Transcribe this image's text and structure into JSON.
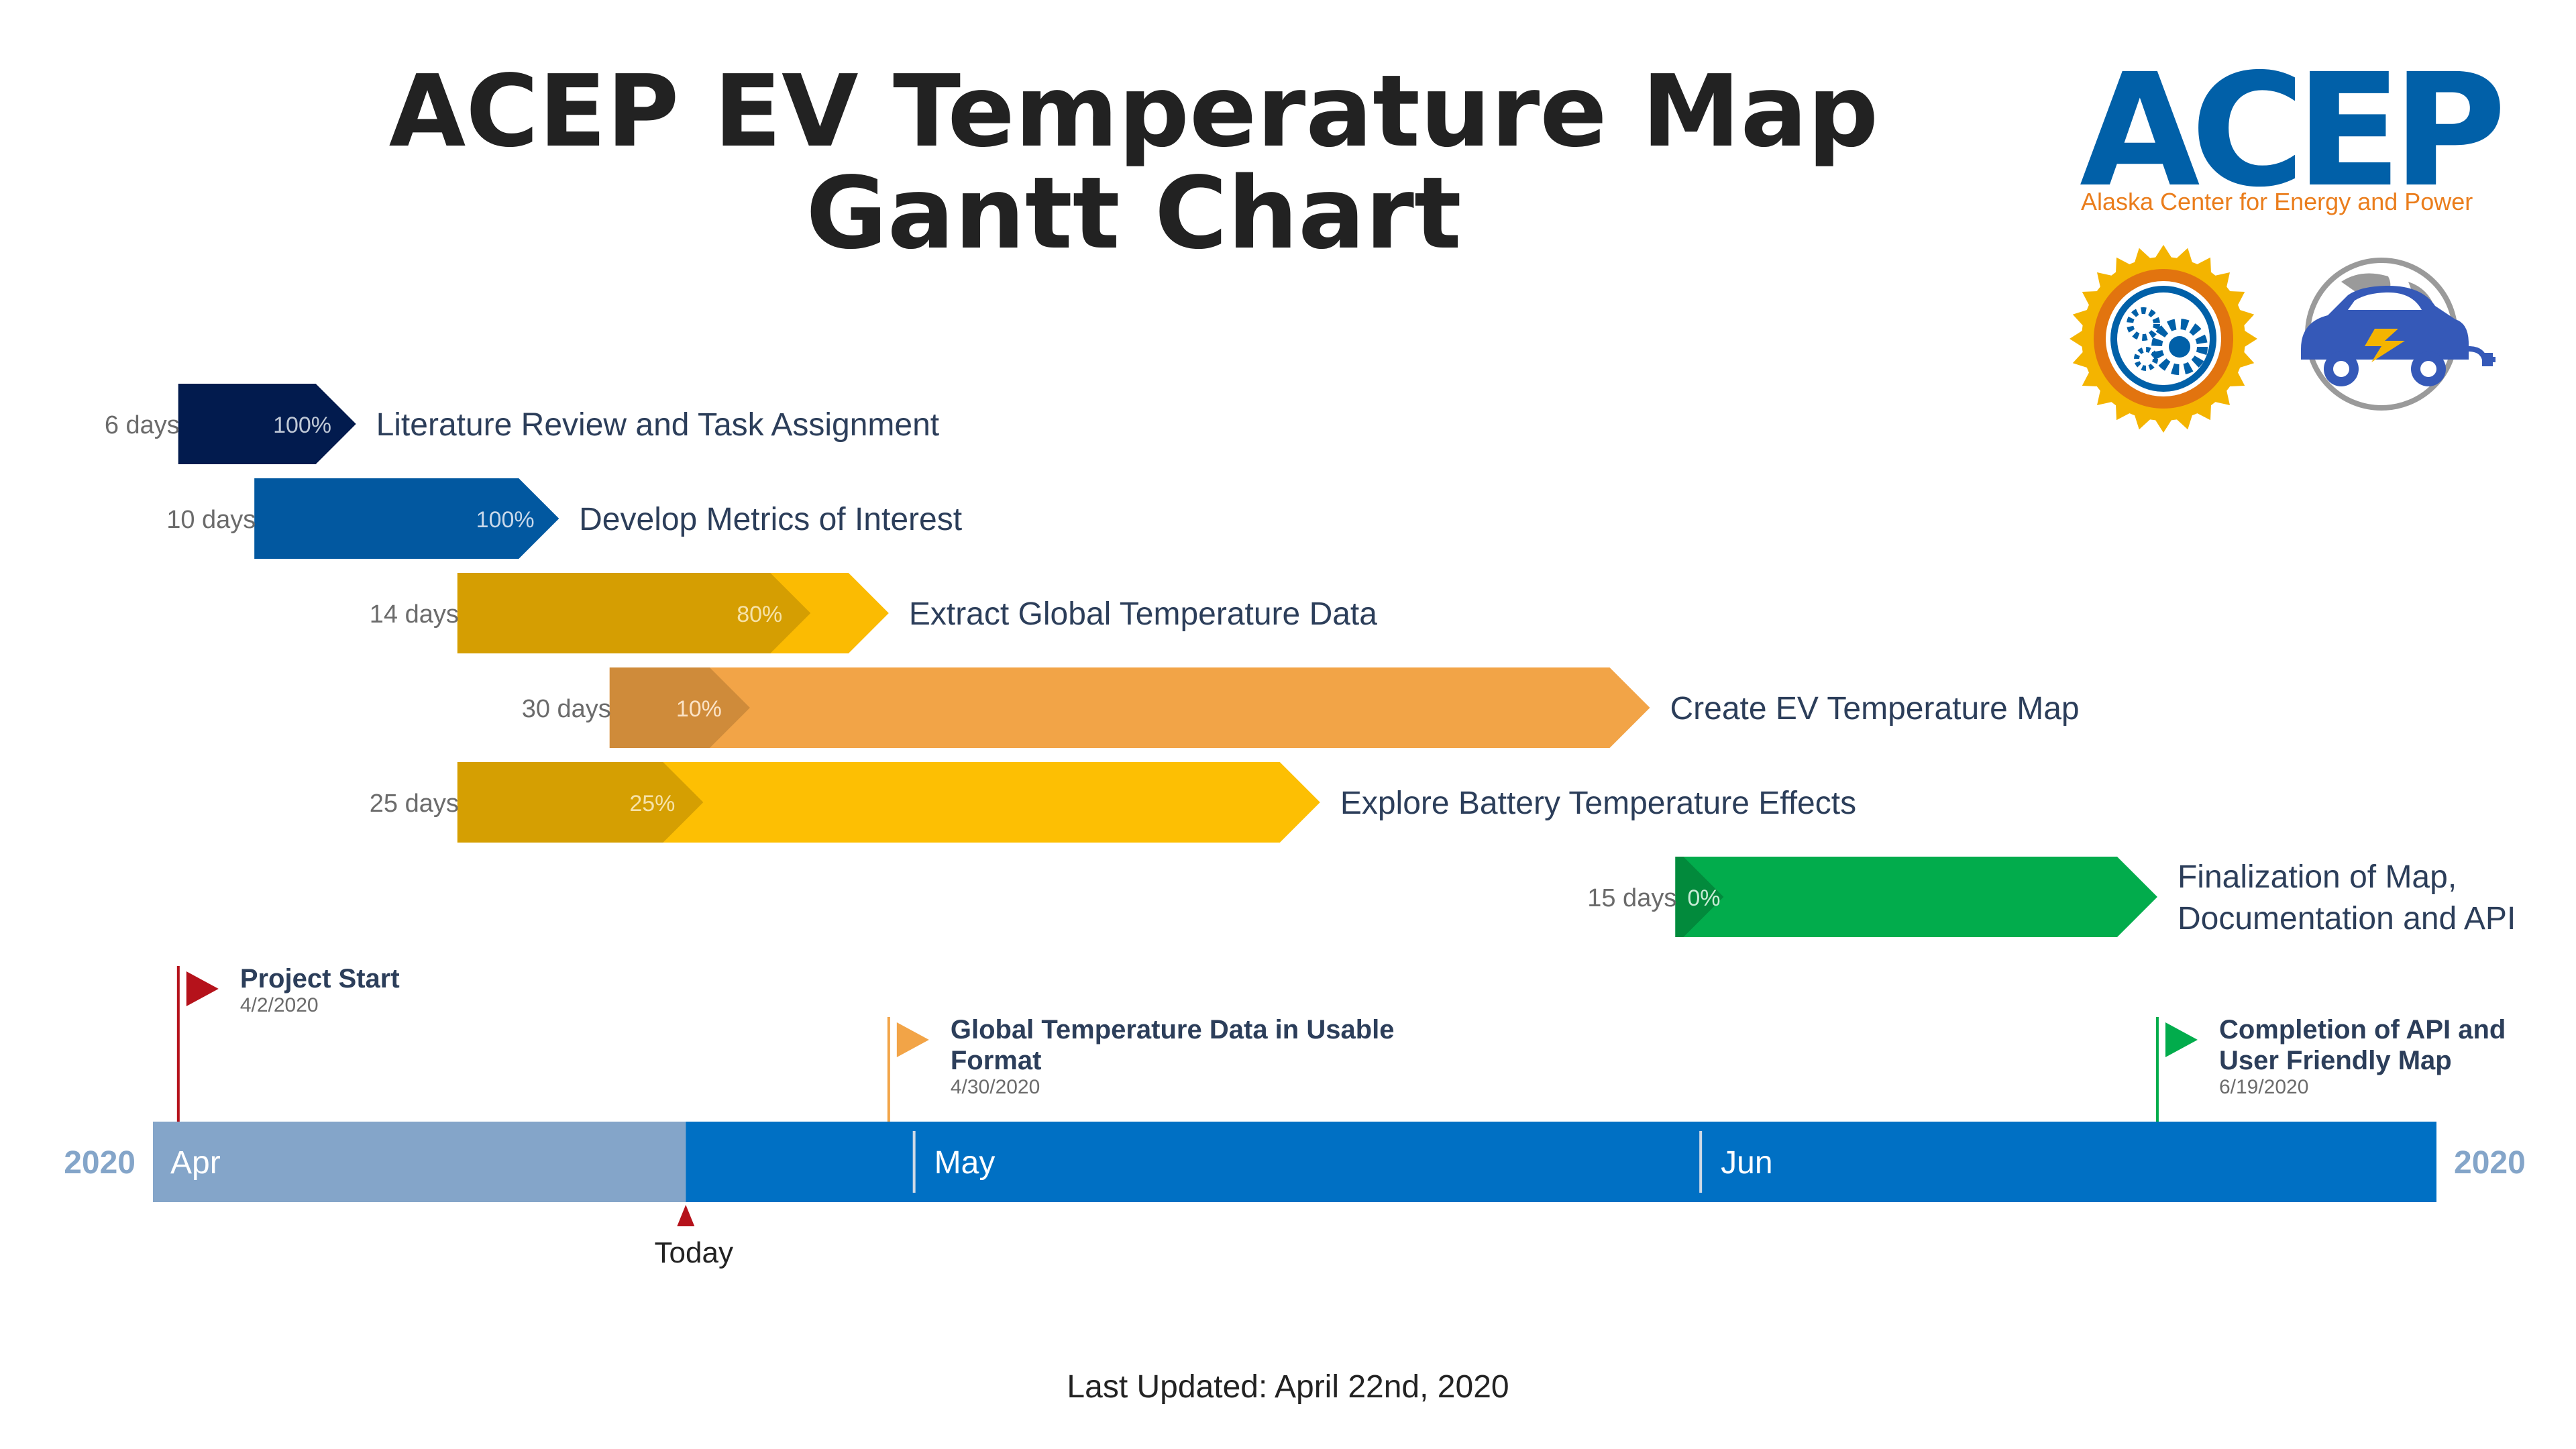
{
  "title": {
    "line1": "ACEP EV Temperature Map",
    "line2": "Gantt Chart"
  },
  "logo": {
    "wordmark": "ACEP",
    "tagline": "Alaska Center for Energy and Power",
    "icons": [
      "gear-sun-icon",
      "electric-car-globe-icon"
    ]
  },
  "footer": {
    "last_updated": "Last Updated: April 22nd, 2020"
  },
  "chart_data": {
    "type": "gantt",
    "year_label_left": "2020",
    "year_label_right": "2020",
    "axis_start": "2020-04-01",
    "axis_end": "2020-06-30",
    "months": [
      {
        "label": "Apr",
        "start": "2020-04-01"
      },
      {
        "label": "May",
        "start": "2020-05-01"
      },
      {
        "label": "Jun",
        "start": "2020-06-01"
      }
    ],
    "today": {
      "label": "Today",
      "date": "2020-04-22"
    },
    "tasks": [
      {
        "name": "Literature Review and Task Assignment",
        "duration_label": "6 days",
        "start": "2020-04-02",
        "end": "2020-04-09",
        "percent": 100,
        "percent_label": "100%",
        "color": "#021b4e",
        "done_color": "#021b4e",
        "text_color": "#bfc8d6"
      },
      {
        "name": "Develop Metrics of Interest",
        "duration_label": "10 days",
        "start": "2020-04-05",
        "end": "2020-04-17",
        "percent": 100,
        "percent_label": "100%",
        "color": "#0258a0",
        "done_color": "#0258a0",
        "text_color": "#c8d8ea"
      },
      {
        "name": "Extract Global Temperature Data",
        "duration_label": "14 days",
        "start": "2020-04-13",
        "end": "2020-04-30",
        "percent": 80,
        "percent_label": "80%",
        "color": "#fbbb02",
        "done_color": "#d59e02",
        "text_color": "#f6e2a8"
      },
      {
        "name": "Create EV Temperature Map",
        "duration_label": "30 days",
        "start": "2020-04-19",
        "end": "2020-05-30",
        "percent": 10,
        "percent_label": "10%",
        "color": "#f2a447",
        "done_color": "#cf8b3a",
        "text_color": "#fbe3c6"
      },
      {
        "name": "Explore Battery Temperature Effects",
        "duration_label": "25 days",
        "start": "2020-04-13",
        "end": "2020-05-17",
        "percent": 25,
        "percent_label": "25%",
        "color": "#fdbf03",
        "done_color": "#d59f02",
        "text_color": "#f6e2a8"
      },
      {
        "name": "Finalization of Map, Documentation and API",
        "duration_label": "15 days",
        "start": "2020-05-31",
        "end": "2020-06-19",
        "percent": 0,
        "percent_label": "0%",
        "color": "#02ac4c",
        "done_color": "#028a3c",
        "text_color": "#c8ecd6"
      }
    ],
    "milestones": [
      {
        "title": "Project Start",
        "date": "2020-04-02",
        "date_label": "4/2/2020",
        "color": "#b5121b"
      },
      {
        "title": "Global Temperature Data in Usable Format",
        "date": "2020-04-30",
        "date_label": "4/30/2020",
        "color": "#f2a447"
      },
      {
        "title": "Completion of API and User Friendly Map",
        "date": "2020-06-19",
        "date_label": "6/19/2020",
        "color": "#02ac4c"
      }
    ],
    "colors": {
      "timeline_past": "#84a5c9",
      "timeline_future": "#0070c4",
      "year_label": "#84a5c9",
      "task_label": "#2c3e5a",
      "duration_label": "#6b6b6b",
      "milestone_text": "#2c3e5a",
      "milestone_date": "#6b6b6b",
      "today_marker": "#b5121b"
    }
  }
}
